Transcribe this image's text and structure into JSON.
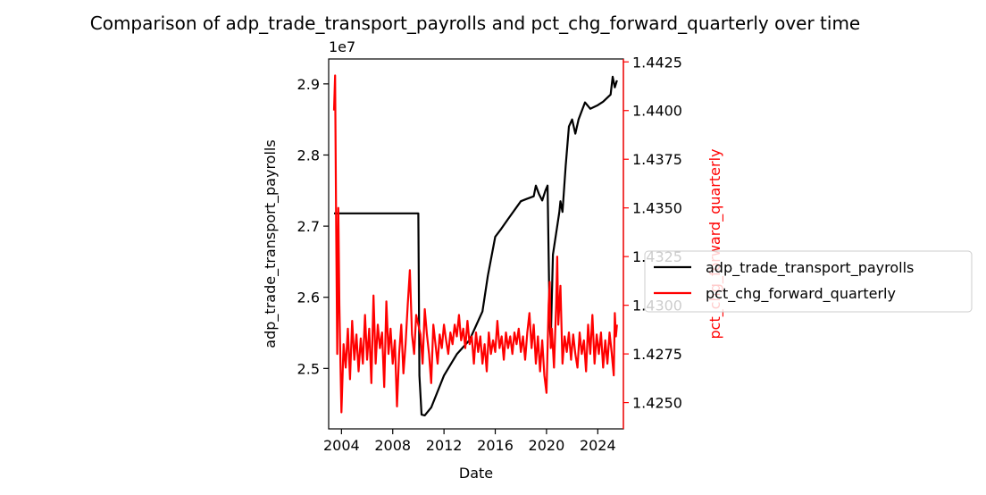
{
  "chart_data": {
    "type": "line",
    "title": "Comparison of adp_trade_transport_payrolls and pct_chg_forward_quarterly over time",
    "xlabel": "Date",
    "x_ticks": [
      "2004",
      "2008",
      "2012",
      "2016",
      "2020",
      "2024"
    ],
    "x_range": [
      "2003-01",
      "2026-01"
    ],
    "left_axis": {
      "label": "adp_trade_transport_payrolls",
      "offset_text": "1e7",
      "ticks": [
        "2.5",
        "2.6",
        "2.7",
        "2.8",
        "2.9"
      ],
      "ylim": [
        2.415,
        2.935
      ],
      "color": "#000000"
    },
    "right_axis": {
      "label": "pct_chg_forward_quarterly",
      "ticks": [
        "1.4250",
        "1.4275",
        "1.4300",
        "1.4325",
        "1.4350",
        "1.4375",
        "1.4400",
        "1.4425"
      ],
      "ylim": [
        1.42365,
        1.44265
      ],
      "color": "#ff0000"
    },
    "legend": {
      "placement": "right",
      "entries": [
        "adp_trade_transport_payrolls",
        "pct_chg_forward_quarterly"
      ]
    },
    "series": [
      {
        "name": "adp_trade_transport_payrolls",
        "axis": "left",
        "color": "#000000",
        "points": [
          [
            "2003-06",
            2.718
          ],
          [
            "2010-01",
            2.718
          ],
          [
            "2010-02",
            2.49
          ],
          [
            "2010-04",
            2.435
          ],
          [
            "2010-07",
            2.434
          ],
          [
            "2011-01",
            2.445
          ],
          [
            "2012-01",
            2.49
          ],
          [
            "2013-01",
            2.52
          ],
          [
            "2014-01",
            2.54
          ],
          [
            "2015-01",
            2.58
          ],
          [
            "2015-06",
            2.63
          ],
          [
            "2016-01",
            2.685
          ],
          [
            "2016-06",
            2.695
          ],
          [
            "2017-01",
            2.71
          ],
          [
            "2018-01",
            2.735
          ],
          [
            "2018-06",
            2.738
          ],
          [
            "2019-01",
            2.742
          ],
          [
            "2019-03",
            2.757
          ],
          [
            "2019-06",
            2.745
          ],
          [
            "2019-09",
            2.736
          ],
          [
            "2019-12",
            2.75
          ],
          [
            "2020-02",
            2.757
          ],
          [
            "2020-04",
            2.56
          ],
          [
            "2020-05",
            2.54
          ],
          [
            "2020-07",
            2.66
          ],
          [
            "2020-10",
            2.69
          ],
          [
            "2021-01",
            2.72
          ],
          [
            "2021-02",
            2.735
          ],
          [
            "2021-04",
            2.72
          ],
          [
            "2021-07",
            2.785
          ],
          [
            "2021-10",
            2.84
          ],
          [
            "2022-01",
            2.85
          ],
          [
            "2022-04",
            2.83
          ],
          [
            "2022-07",
            2.85
          ],
          [
            "2023-01",
            2.874
          ],
          [
            "2023-06",
            2.865
          ],
          [
            "2024-01",
            2.87
          ],
          [
            "2024-06",
            2.875
          ],
          [
            "2025-01",
            2.885
          ],
          [
            "2025-03",
            2.91
          ],
          [
            "2025-05",
            2.895
          ],
          [
            "2025-07",
            2.905
          ]
        ]
      },
      {
        "name": "pct_chg_forward_quarterly",
        "axis": "right",
        "color": "#ff0000",
        "points": [
          [
            "2003-06",
            1.44
          ],
          [
            "2003-07",
            1.4418
          ],
          [
            "2003-08",
            1.434
          ],
          [
            "2003-09",
            1.4275
          ],
          [
            "2003-10",
            1.435
          ],
          [
            "2003-11",
            1.43
          ],
          [
            "2003-12",
            1.427
          ],
          [
            "2004-01",
            1.4245
          ],
          [
            "2004-03",
            1.428
          ],
          [
            "2004-05",
            1.4268
          ],
          [
            "2004-07",
            1.4288
          ],
          [
            "2004-09",
            1.4262
          ],
          [
            "2004-11",
            1.4292
          ],
          [
            "2005-01",
            1.4272
          ],
          [
            "2005-03",
            1.4285
          ],
          [
            "2005-05",
            1.4266
          ],
          [
            "2005-07",
            1.4283
          ],
          [
            "2005-09",
            1.427
          ],
          [
            "2005-11",
            1.4295
          ],
          [
            "2006-01",
            1.4272
          ],
          [
            "2006-03",
            1.4288
          ],
          [
            "2006-05",
            1.426
          ],
          [
            "2006-07",
            1.4305
          ],
          [
            "2006-09",
            1.427
          ],
          [
            "2006-11",
            1.429
          ],
          [
            "2007-01",
            1.4278
          ],
          [
            "2007-03",
            1.4286
          ],
          [
            "2007-05",
            1.4258
          ],
          [
            "2007-07",
            1.4302
          ],
          [
            "2007-09",
            1.4275
          ],
          [
            "2007-11",
            1.4288
          ],
          [
            "2008-01",
            1.427
          ],
          [
            "2008-03",
            1.4282
          ],
          [
            "2008-05",
            1.4248
          ],
          [
            "2008-07",
            1.4275
          ],
          [
            "2008-09",
            1.429
          ],
          [
            "2008-11",
            1.4265
          ],
          [
            "2009-01",
            1.428
          ],
          [
            "2009-03",
            1.43
          ],
          [
            "2009-05",
            1.4318
          ],
          [
            "2009-07",
            1.4285
          ],
          [
            "2009-09",
            1.4275
          ],
          [
            "2009-11",
            1.4295
          ],
          [
            "2010-01",
            1.429
          ],
          [
            "2010-03",
            1.4285
          ],
          [
            "2010-05",
            1.427
          ],
          [
            "2010-07",
            1.4298
          ],
          [
            "2010-09",
            1.4285
          ],
          [
            "2010-11",
            1.4275
          ],
          [
            "2011-01",
            1.426
          ],
          [
            "2011-03",
            1.429
          ],
          [
            "2011-05",
            1.428
          ],
          [
            "2011-07",
            1.427
          ],
          [
            "2011-09",
            1.4285
          ],
          [
            "2011-11",
            1.4278
          ],
          [
            "2012-01",
            1.429
          ],
          [
            "2012-03",
            1.4282
          ],
          [
            "2012-05",
            1.4275
          ],
          [
            "2012-07",
            1.4286
          ],
          [
            "2012-09",
            1.428
          ],
          [
            "2012-11",
            1.429
          ],
          [
            "2013-01",
            1.4284
          ],
          [
            "2013-03",
            1.4295
          ],
          [
            "2013-05",
            1.4282
          ],
          [
            "2013-07",
            1.4288
          ],
          [
            "2013-09",
            1.4278
          ],
          [
            "2013-11",
            1.4292
          ],
          [
            "2014-01",
            1.428
          ],
          [
            "2014-03",
            1.4284
          ],
          [
            "2014-05",
            1.427
          ],
          [
            "2014-07",
            1.4286
          ],
          [
            "2014-09",
            1.4276
          ],
          [
            "2014-11",
            1.4284
          ],
          [
            "2015-01",
            1.427
          ],
          [
            "2015-03",
            1.428
          ],
          [
            "2015-05",
            1.4266
          ],
          [
            "2015-07",
            1.4286
          ],
          [
            "2015-09",
            1.4275
          ],
          [
            "2015-11",
            1.4282
          ],
          [
            "2016-01",
            1.4276
          ],
          [
            "2016-03",
            1.4292
          ],
          [
            "2016-05",
            1.4278
          ],
          [
            "2016-07",
            1.4284
          ],
          [
            "2016-09",
            1.4272
          ],
          [
            "2016-11",
            1.4286
          ],
          [
            "2017-01",
            1.4278
          ],
          [
            "2017-03",
            1.4284
          ],
          [
            "2017-05",
            1.4275
          ],
          [
            "2017-07",
            1.4286
          ],
          [
            "2017-09",
            1.428
          ],
          [
            "2017-11",
            1.4288
          ],
          [
            "2018-01",
            1.4276
          ],
          [
            "2018-03",
            1.4284
          ],
          [
            "2018-05",
            1.4272
          ],
          [
            "2018-07",
            1.4286
          ],
          [
            "2018-09",
            1.4296
          ],
          [
            "2018-11",
            1.4278
          ],
          [
            "2019-01",
            1.429
          ],
          [
            "2019-03",
            1.427
          ],
          [
            "2019-05",
            1.4284
          ],
          [
            "2019-07",
            1.4266
          ],
          [
            "2019-09",
            1.4282
          ],
          [
            "2019-11",
            1.4264
          ],
          [
            "2020-01",
            1.4255
          ],
          [
            "2020-03",
            1.43
          ],
          [
            "2020-04",
            1.4312
          ],
          [
            "2020-05",
            1.4278
          ],
          [
            "2020-06",
            1.4288
          ],
          [
            "2020-08",
            1.4268
          ],
          [
            "2020-10",
            1.43
          ],
          [
            "2020-11",
            1.4325
          ],
          [
            "2020-12",
            1.429
          ],
          [
            "2021-02",
            1.431
          ],
          [
            "2021-04",
            1.427
          ],
          [
            "2021-06",
            1.4284
          ],
          [
            "2021-08",
            1.4276
          ],
          [
            "2021-10",
            1.4286
          ],
          [
            "2021-12",
            1.4272
          ],
          [
            "2022-02",
            1.4285
          ],
          [
            "2022-04",
            1.4275
          ],
          [
            "2022-06",
            1.4268
          ],
          [
            "2022-08",
            1.4286
          ],
          [
            "2022-10",
            1.4275
          ],
          [
            "2022-12",
            1.4282
          ],
          [
            "2023-02",
            1.4266
          ],
          [
            "2023-04",
            1.429
          ],
          [
            "2023-06",
            1.4275
          ],
          [
            "2023-08",
            1.4295
          ],
          [
            "2023-10",
            1.427
          ],
          [
            "2023-12",
            1.4285
          ],
          [
            "2024-02",
            1.4275
          ],
          [
            "2024-04",
            1.4286
          ],
          [
            "2024-06",
            1.4268
          ],
          [
            "2024-08",
            1.4282
          ],
          [
            "2024-10",
            1.427
          ],
          [
            "2024-12",
            1.4286
          ],
          [
            "2025-02",
            1.4276
          ],
          [
            "2025-04",
            1.4264
          ],
          [
            "2025-05",
            1.4296
          ],
          [
            "2025-06",
            1.4284
          ],
          [
            "2025-07",
            1.429
          ]
        ]
      }
    ]
  }
}
